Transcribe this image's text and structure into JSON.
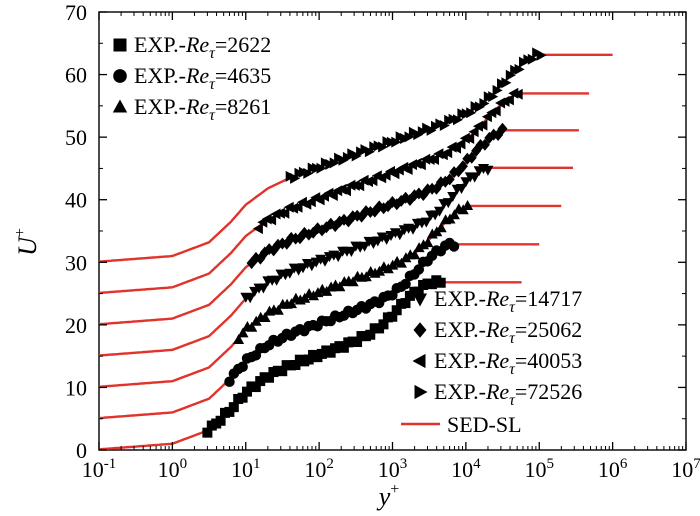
{
  "chart_data": {
    "type": "line",
    "xlabel": "y",
    "xlabel_sup": "+",
    "ylabel": "U",
    "ylabel_sup": "+",
    "xscale": "log",
    "xlim_exp": [
      -1,
      7
    ],
    "ylim": [
      0,
      70
    ],
    "x_ticks": [
      {
        "base": "10",
        "exp": "-1"
      },
      {
        "base": "10",
        "exp": "0"
      },
      {
        "base": "10",
        "exp": "1"
      },
      {
        "base": "10",
        "exp": "2"
      },
      {
        "base": "10",
        "exp": "3"
      },
      {
        "base": "10",
        "exp": "4"
      },
      {
        "base": "10",
        "exp": "5"
      },
      {
        "base": "10",
        "exp": "6"
      },
      {
        "base": "10",
        "exp": "7"
      }
    ],
    "y_ticks": [
      "0",
      "10",
      "20",
      "30",
      "40",
      "50",
      "60",
      "70"
    ],
    "colors": {
      "model": "#e0332b",
      "experiment": "#000000"
    },
    "legend_location": [
      "top-left",
      "bottom-right"
    ],
    "series": [
      {
        "name": "EXP.-Reτ=2622",
        "prefix": "EXP.-",
        "re": "Re",
        "sub": "τ",
        "value": "=2622",
        "marker": "square",
        "offset": 0,
        "re_tau": 2622,
        "x_min": 3,
        "x_max": 5100,
        "model_x_max": 60000
      },
      {
        "name": "EXP.-Reτ=4635",
        "prefix": "EXP.-",
        "re": "Re",
        "sub": "τ",
        "value": "=4635",
        "marker": "circle",
        "offset": 5,
        "re_tau": 4635,
        "x_min": 6,
        "x_max": 7000,
        "model_x_max": 100000
      },
      {
        "name": "EXP.-Reτ=8261",
        "prefix": "EXP.-",
        "re": "Re",
        "sub": "τ",
        "value": "=8261",
        "marker": "triangle-up",
        "offset": 10,
        "re_tau": 8261,
        "x_min": 8,
        "x_max": 11000,
        "model_x_max": 200000
      },
      {
        "name": "EXP.-Reτ=14717",
        "prefix": "EXP.-",
        "re": "Re",
        "sub": "τ",
        "value": "=14717",
        "marker": "triangle-down",
        "offset": 15,
        "re_tau": 14717,
        "x_min": 10,
        "x_max": 20000,
        "model_x_max": 300000
      },
      {
        "name": "EXP.-Reτ=25062",
        "prefix": "EXP.-",
        "re": "Re",
        "sub": "τ",
        "value": "=25062",
        "marker": "diamond",
        "offset": 20,
        "re_tau": 25062,
        "x_min": 12,
        "x_max": 35000,
        "model_x_max": 350000
      },
      {
        "name": "EXP.-Reτ=40053",
        "prefix": "EXP.-",
        "re": "Re",
        "sub": "τ",
        "value": "=40053",
        "marker": "triangle-left",
        "offset": 25,
        "re_tau": 40053,
        "x_min": 15,
        "x_max": 55000,
        "model_x_max": 500000
      },
      {
        "name": "EXP.-Reτ=72526",
        "prefix": "EXP.-",
        "re": "Re",
        "sub": "τ",
        "value": "=72526",
        "marker": "triangle-right",
        "offset": 30,
        "re_tau": 72526,
        "x_min": 40,
        "x_max": 110000,
        "model_x_max": 1000000
      }
    ],
    "model": {
      "name": "SED-SL",
      "note": "one red curve per series, shifted by 5 U+ units each"
    },
    "profile_shape": {
      "description": "approximate U+ vs y+ profile (before offset)",
      "log_y": [
        -1,
        0,
        0.5,
        0.8,
        1.0,
        1.3,
        1.6,
        2.0,
        2.5,
        3.0,
        3.3,
        3.6,
        3.8,
        4.0,
        4.3,
        4.6,
        5.0,
        5.5,
        6.0
      ],
      "u_base": [
        0.1,
        1.0,
        3.2,
        6.5,
        9.2,
        11.8,
        13.5,
        15.2,
        17.3,
        19.3,
        20.5,
        21.7,
        22.6,
        23.5,
        24.8,
        26.1,
        27.9,
        30.1,
        32.2
      ],
      "outer_jump": 5.8
    }
  }
}
